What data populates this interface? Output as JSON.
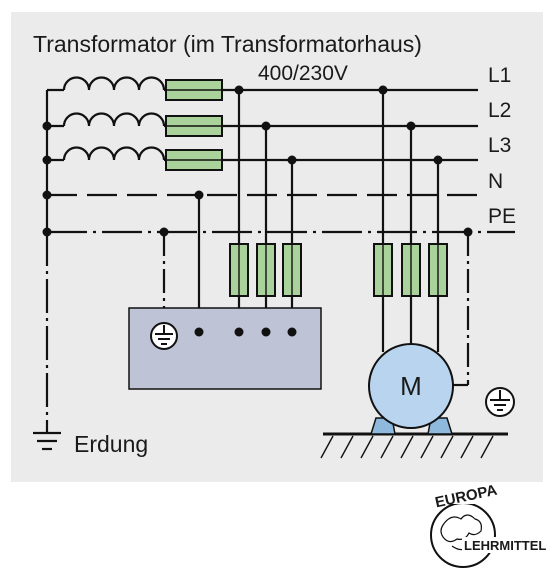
{
  "title": "Transformator (im Transformatorhaus)",
  "voltage": "400/230V",
  "conductors": {
    "l1": "L1",
    "l2": "L2",
    "l3": "L3",
    "n": "N",
    "pe": "PE"
  },
  "motor_label": "M",
  "earthing_label": "Erdung",
  "logo": {
    "top_text": "EUROPA",
    "bottom_text": "LEHRMITTEL"
  },
  "colors": {
    "panel_background": "#ebebeb",
    "fuse_fill": "#a9d39a",
    "device_box_fill": "#bfc3d6",
    "motor_fill": "#b9d4ee",
    "motor_feet_fill": "#8fb8dd",
    "line": "#111111"
  }
}
